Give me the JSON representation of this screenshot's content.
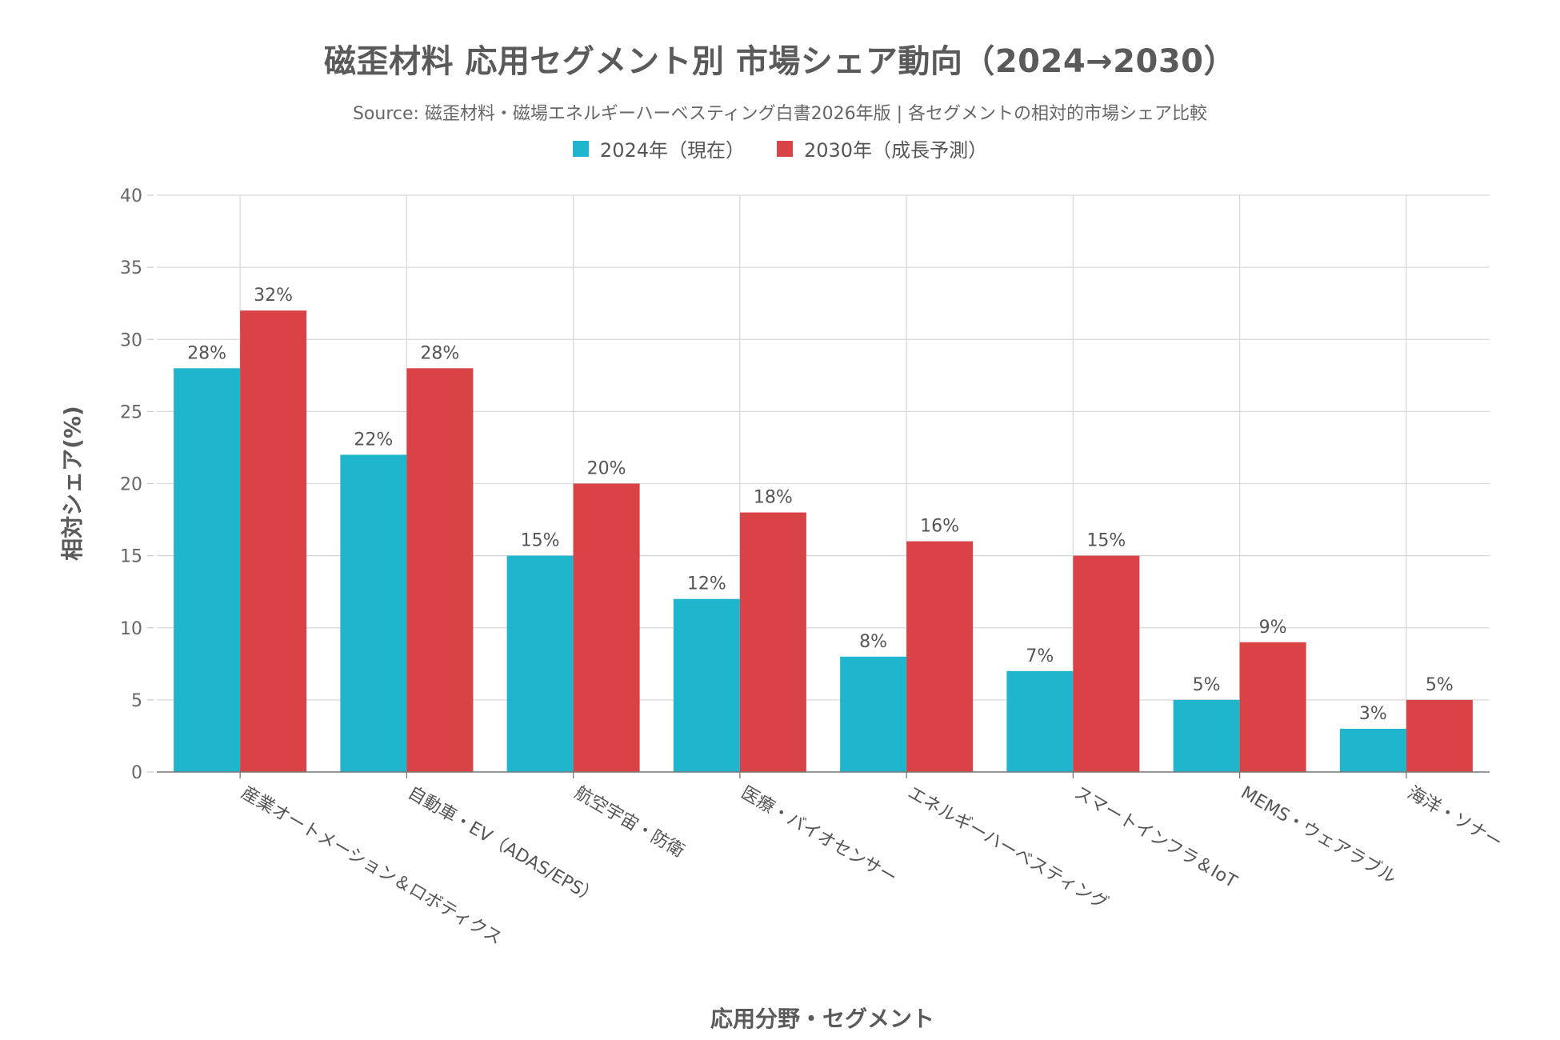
{
  "chart_data": {
    "type": "bar",
    "title": "磁歪材料 応用セグメント別 市場シェア動向（2024→2030）",
    "subtitle": "Source: 磁歪材料・磁場エネルギーハーベスティング白書2026年版 | 各セグメントの相対的市場シェア比較",
    "xlabel": "応用分野・セグメント",
    "ylabel": "相対シェア(%)",
    "ylim": [
      0,
      40
    ],
    "yticks": [
      0,
      5,
      10,
      15,
      20,
      25,
      30,
      35,
      40
    ],
    "grid": true,
    "legend_position": "top-center",
    "categories": [
      "産業オートメーション＆ロボティクス",
      "自動車・EV（ADAS/EPS）",
      "航空宇宙・防衛",
      "医療・バイオセンサー",
      "エネルギーハーベスティング",
      "スマートインフラ＆IoT",
      "MEMS・ウェアラブル",
      "海洋・ソナー"
    ],
    "series": [
      {
        "name": "2024年（現在）",
        "color": "#1fb5cc",
        "values": [
          28,
          22,
          15,
          12,
          8,
          7,
          5,
          3
        ]
      },
      {
        "name": "2030年（成長予測）",
        "color": "#d94346",
        "values": [
          32,
          28,
          20,
          18,
          16,
          15,
          9,
          5
        ]
      }
    ],
    "value_suffix": "%"
  }
}
